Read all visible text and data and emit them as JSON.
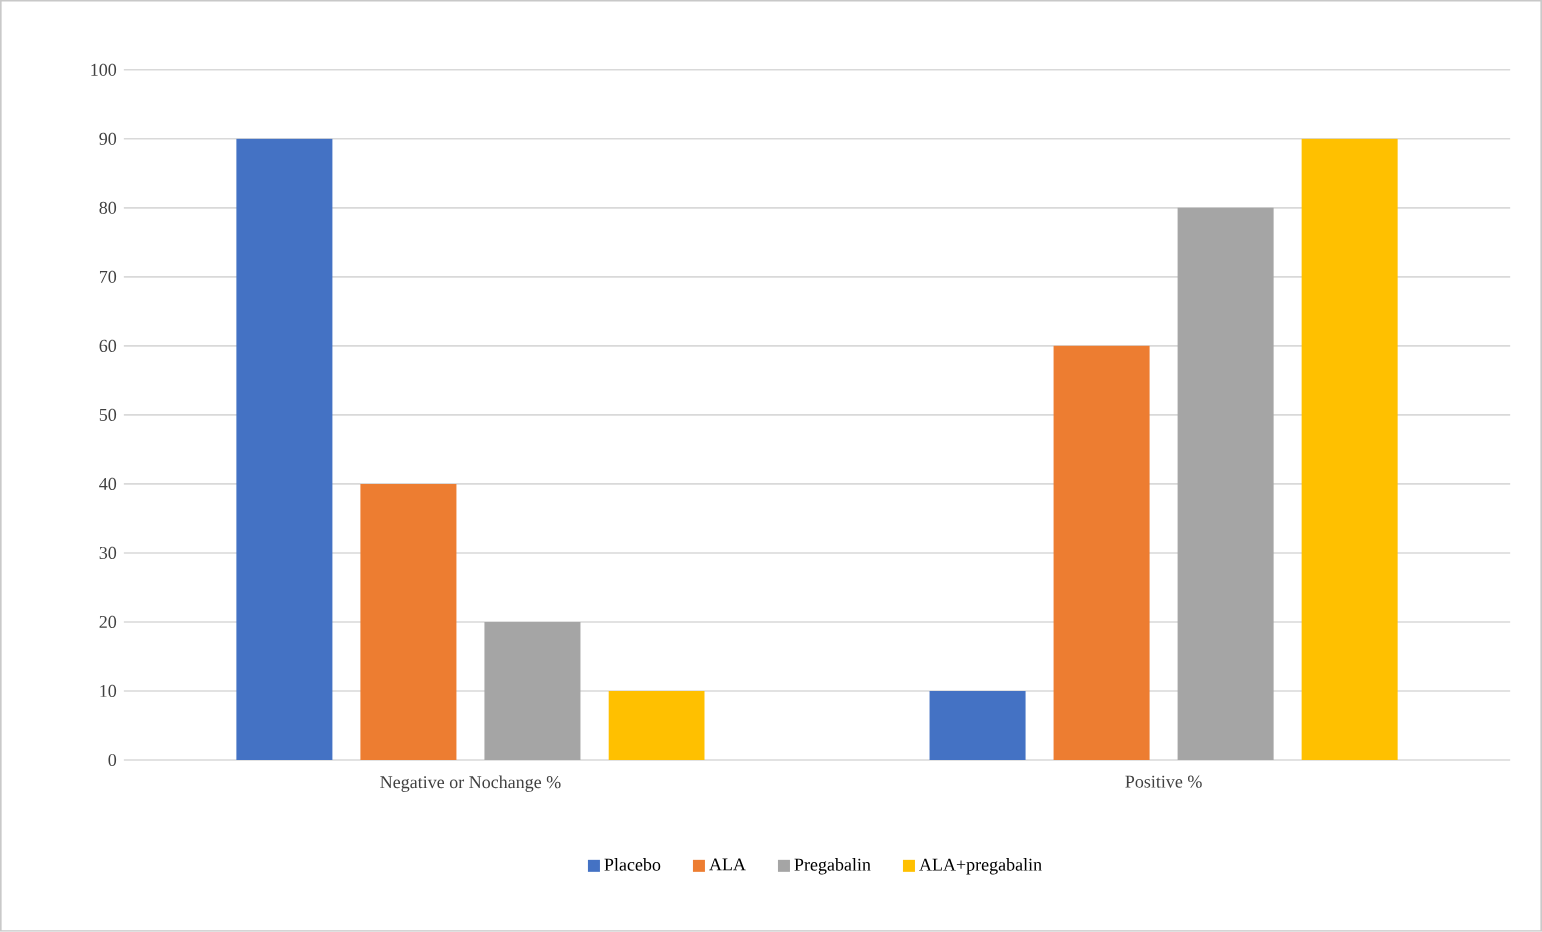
{
  "chart_data": {
    "type": "bar",
    "categories": [
      "Negative or Nochange %",
      "Positive %"
    ],
    "series": [
      {
        "name": "Placebo",
        "color": "#4472c4",
        "values": [
          90,
          10
        ]
      },
      {
        "name": "ALA",
        "color": "#ed7d31",
        "values": [
          40,
          60
        ]
      },
      {
        "name": "Pregabalin",
        "color": "#a5a5a5",
        "values": [
          20,
          80
        ]
      },
      {
        "name": "ALA+pregabalin",
        "color": "#ffc000",
        "values": [
          10,
          90
        ]
      }
    ],
    "ylim": [
      0,
      100
    ],
    "yticks": [
      0,
      10,
      20,
      30,
      40,
      50,
      60,
      70,
      80,
      90,
      100
    ],
    "grid": "y",
    "legend": "bottom"
  }
}
